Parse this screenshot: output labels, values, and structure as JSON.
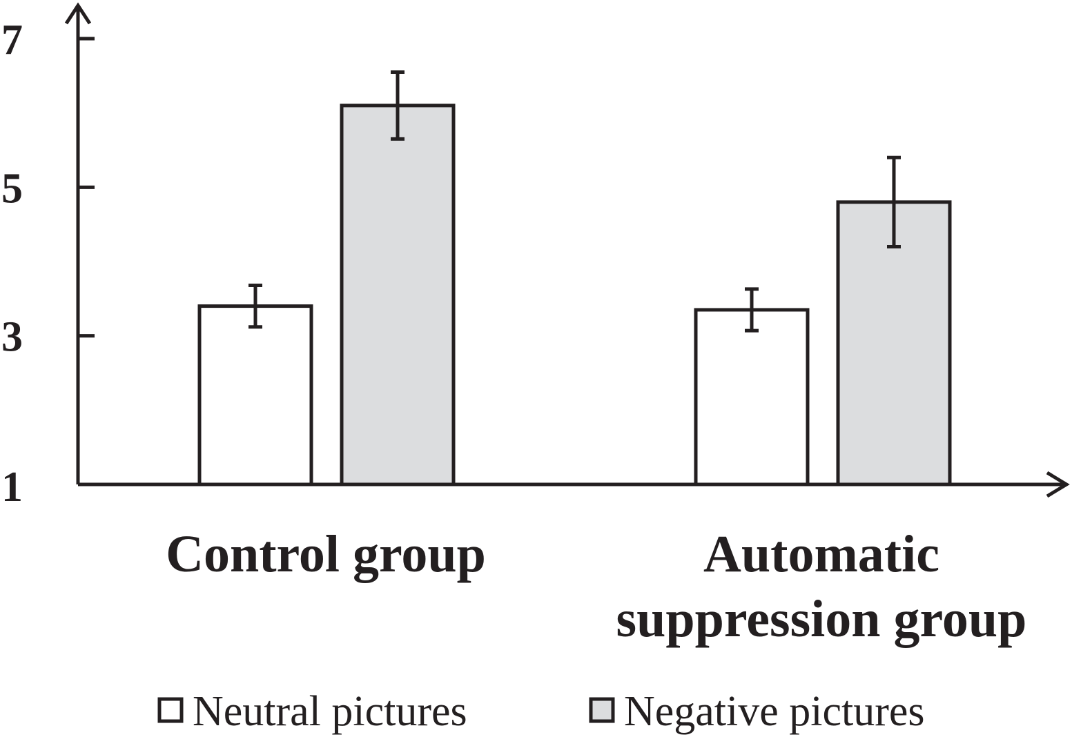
{
  "chart_data": {
    "type": "bar",
    "categories": [
      "Control group",
      "Automatic suppression group"
    ],
    "category_lines": [
      [
        "Control group"
      ],
      [
        "Automatic",
        "suppression group"
      ]
    ],
    "series": [
      {
        "name": "Neutral pictures",
        "values": [
          3.4,
          3.35
        ],
        "errors": [
          0.28,
          0.28
        ],
        "color": "#ffffff"
      },
      {
        "name": "Negative pictures",
        "values": [
          6.1,
          4.8
        ],
        "errors": [
          0.45,
          0.6
        ],
        "color": "#dcdddf"
      }
    ],
    "ylim": [
      1,
      7
    ],
    "yticks": [
      "7",
      "5",
      "3",
      "1"
    ],
    "ytick_values": [
      7,
      5,
      3,
      1
    ],
    "xlabel": "",
    "ylabel": "",
    "title": "",
    "legend_position": "bottom",
    "grid": false,
    "stroke_color": "#231f20"
  }
}
